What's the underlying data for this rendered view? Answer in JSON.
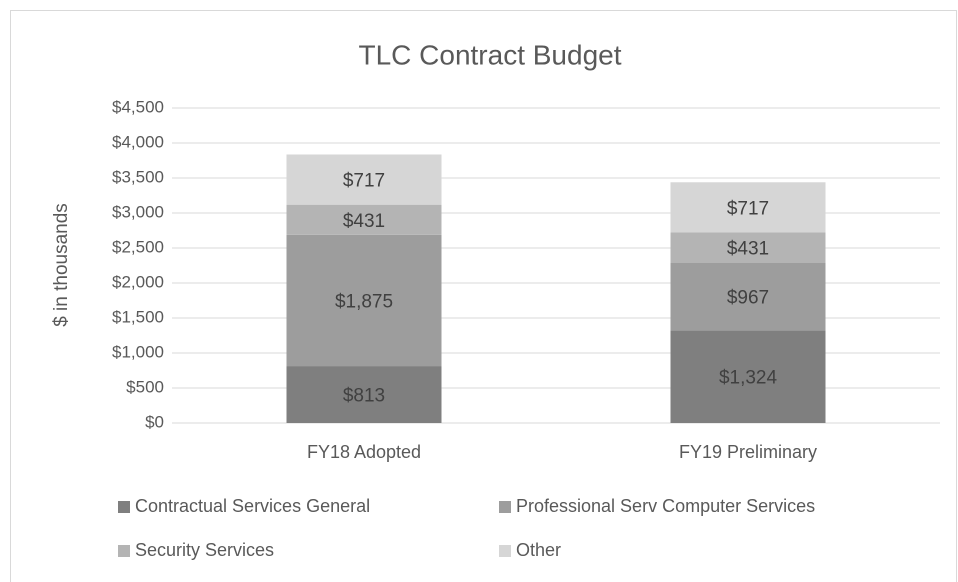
{
  "chart_data": {
    "type": "stacked_bar",
    "title": "TLC Contract Budget",
    "y_label": "$ in thousands",
    "categories": [
      "FY18 Adopted",
      "FY19 Preliminary"
    ],
    "series": [
      {
        "name": "Contractual Services General",
        "color": "#7f7f7f",
        "values": [
          813,
          1324
        ],
        "value_labels": [
          "$813",
          "$1,324"
        ]
      },
      {
        "name": "Professional Serv Computer Services",
        "color": "#9d9d9d",
        "values": [
          1875,
          967
        ],
        "value_labels": [
          "$1,875",
          "$967"
        ]
      },
      {
        "name": "Security Services",
        "color": "#b4b4b4",
        "values": [
          431,
          431
        ],
        "value_labels": [
          "$431",
          "$431"
        ]
      },
      {
        "name": "Other",
        "color": "#d6d6d6",
        "values": [
          717,
          717
        ],
        "value_labels": [
          "$717",
          "$717"
        ]
      }
    ],
    "ylim": [
      0,
      4500
    ],
    "yticks": [
      {
        "value": 0,
        "label": "$0"
      },
      {
        "value": 500,
        "label": "$500"
      },
      {
        "value": 1000,
        "label": "$1,000"
      },
      {
        "value": 1500,
        "label": "$1,500"
      },
      {
        "value": 2000,
        "label": "$2,000"
      },
      {
        "value": 2500,
        "label": "$2,500"
      },
      {
        "value": 3000,
        "label": "$3,000"
      },
      {
        "value": 3500,
        "label": "$3,500"
      },
      {
        "value": 4000,
        "label": "$4,000"
      },
      {
        "value": 4500,
        "label": "$4,500"
      }
    ],
    "grid": true,
    "legend": "bottom"
  }
}
